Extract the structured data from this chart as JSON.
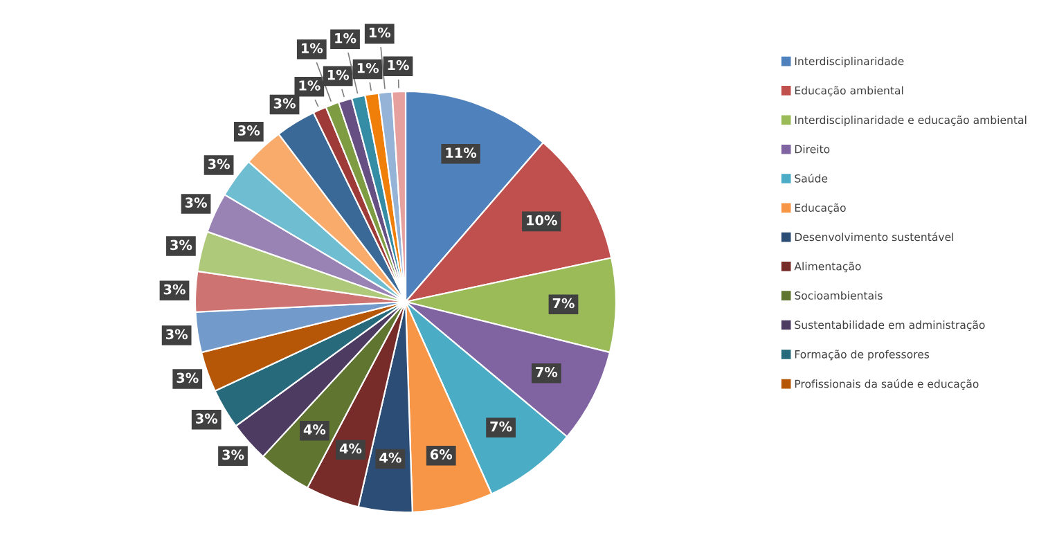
{
  "chart_data": {
    "type": "pie",
    "legend": "right",
    "categories": [
      "Interdisciplinaridade",
      "Educação ambiental",
      "Interdisciplinaridade e educação ambiental",
      "Direito",
      "Saúde",
      "Educação",
      "Desenvolvimento sustentável",
      "Alimentação",
      "Socioambientais",
      "Sustentabilidade em administração",
      "Formação de professores",
      "Profissionais da saúde e educação",
      null,
      null,
      null,
      null,
      null,
      null,
      null,
      null,
      null,
      null,
      null,
      null,
      null,
      null
    ],
    "values": [
      11,
      10,
      7,
      7,
      7,
      6,
      4,
      4,
      4,
      3,
      3,
      3,
      3,
      3,
      3,
      3,
      3,
      3,
      3,
      1,
      1,
      1,
      1,
      1,
      1,
      1
    ],
    "colors": [
      "#4f81bd",
      "#c0504d",
      "#9bbb59",
      "#8064a2",
      "#4bacc6",
      "#f79646",
      "#2c4d75",
      "#772c2a",
      "#5f7530",
      "#4d3b62",
      "#276a7c",
      "#b65708",
      "#729aca",
      "#cd7371",
      "#afc97a",
      "#9983b5",
      "#6fbdd1",
      "#f9ab6b",
      "#3a6997",
      "#9e3b38",
      "#7e9c41",
      "#664f83",
      "#358da5",
      "#f07f09",
      "#95b3d7",
      "#e6a09e"
    ],
    "value_labels": [
      "11%",
      "10%",
      "7%",
      "7%",
      "7%",
      "6%",
      "4%",
      "4%",
      "4%",
      "3%",
      "3%",
      "3%",
      "3%",
      "3%",
      "3%",
      "3%",
      "3%",
      "3%",
      "3%",
      "1%",
      "1%",
      "1%",
      "1%",
      "1%",
      "1%",
      "1%"
    ]
  }
}
